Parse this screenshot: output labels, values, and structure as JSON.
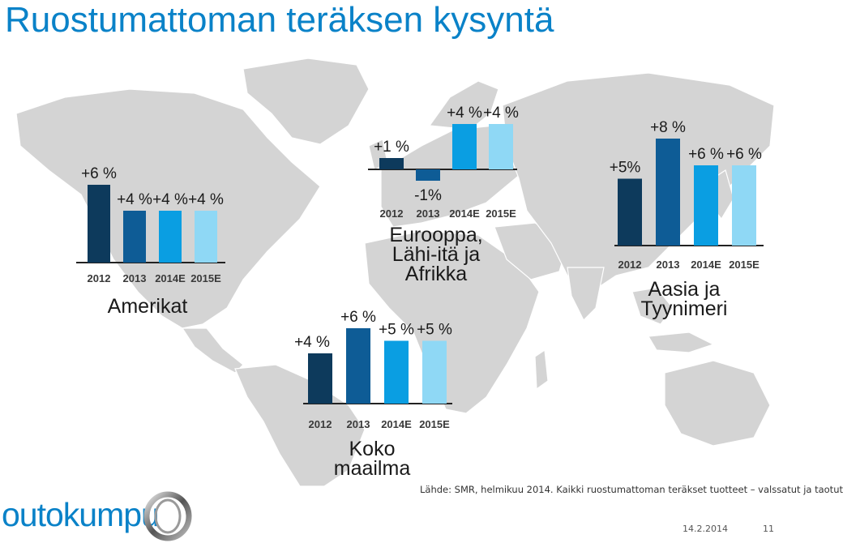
{
  "title": "Ruostumattoman teräksen kysyntä",
  "source": "Lähde: SMR, helmikuu 2014. Kaikki ruostumattoman teräkset tuotteet – valssatut ja taotut",
  "footer": {
    "date": "14.2.2014",
    "page": "11"
  },
  "logo": {
    "text": "outokumpu"
  },
  "colors": {
    "title": "#0a82c8",
    "map": "#d4d4d4",
    "bars": [
      "#0d3a5c",
      "#0e5c96",
      "#0a9ee2",
      "#8fd8f5"
    ]
  },
  "chart_data": [
    {
      "type": "bar",
      "region": "Amerikat",
      "categories": [
        "2012",
        "2013",
        "2014E",
        "2015E"
      ],
      "values": [
        6,
        4,
        4,
        4
      ],
      "labels": [
        "+6 %",
        "+4 %",
        "+4 %",
        "+4 %"
      ]
    },
    {
      "type": "bar",
      "region": "Eurooppa,\nLähi-itä ja\nAfrikka",
      "categories": [
        "2012",
        "2013",
        "2014E",
        "2015E"
      ],
      "values": [
        1,
        -1,
        4,
        4
      ],
      "labels": [
        "+1 %",
        "-1%",
        "+4 %",
        "+4 %"
      ]
    },
    {
      "type": "bar",
      "region": "Aasia ja\nTyynimeri",
      "categories": [
        "2012",
        "2013",
        "2014E",
        "2015E"
      ],
      "values": [
        5,
        8,
        6,
        6
      ],
      "labels": [
        "+5%",
        "+8 %",
        "+6 %",
        "+6 %"
      ]
    },
    {
      "type": "bar",
      "region": "Koko\nmaailma",
      "categories": [
        "2012",
        "2013",
        "2014E",
        "2015E"
      ],
      "values": [
        4,
        6,
        5,
        5
      ],
      "labels": [
        "+4 %",
        "+6 %",
        "+5 %",
        "+5 %"
      ]
    }
  ]
}
